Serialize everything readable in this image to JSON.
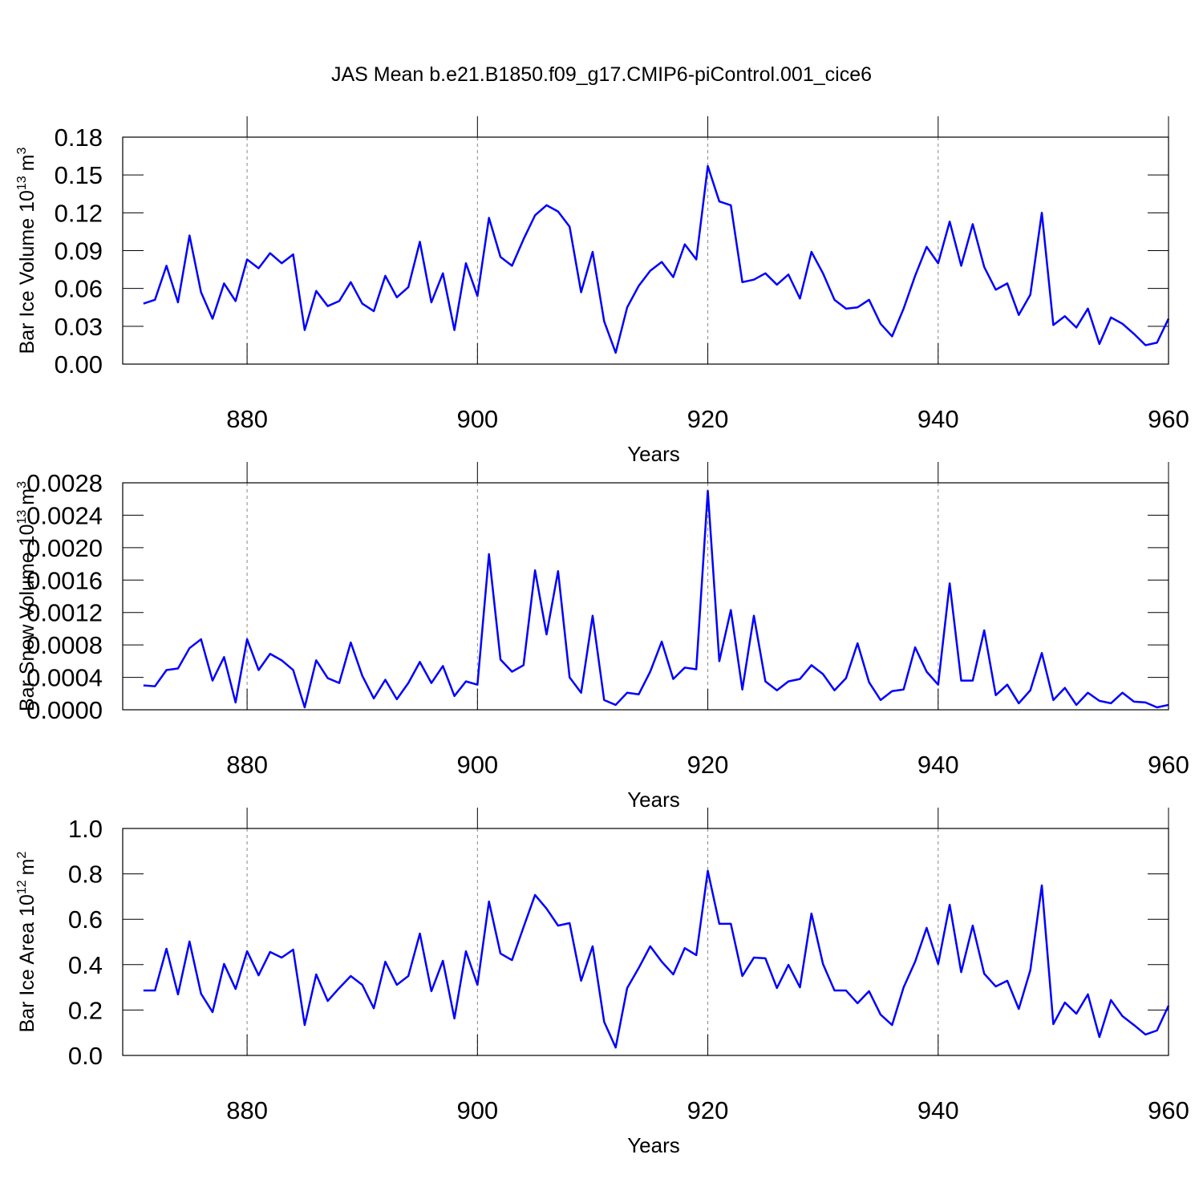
{
  "chart_data": [
    {
      "type": "line",
      "title": "JAS Mean b.e21.B1850.f09_g17.CMIP6-piControl.001_cice6",
      "ylabel": {
        "text": "Bar Ice Volume 10",
        "power": "13",
        "unit": "m",
        "unit_power": "3"
      },
      "xlabel": "Years",
      "x": [
        871,
        872,
        873,
        874,
        875,
        876,
        877,
        878,
        879,
        880,
        881,
        882,
        883,
        884,
        885,
        886,
        887,
        888,
        889,
        890,
        891,
        892,
        893,
        894,
        895,
        896,
        897,
        898,
        899,
        900,
        901,
        902,
        903,
        904,
        905,
        906,
        907,
        908,
        909,
        910,
        911,
        912,
        913,
        914,
        915,
        916,
        917,
        918,
        919,
        920,
        921,
        922,
        923,
        924,
        925,
        926,
        927,
        928,
        929,
        930,
        931,
        932,
        933,
        934,
        935,
        936,
        937,
        938,
        939,
        940,
        941,
        942,
        943,
        944,
        945,
        946,
        947,
        948,
        949,
        950,
        951,
        952,
        953,
        954,
        955,
        956,
        957,
        958,
        959,
        960
      ],
      "series": [
        {
          "color": "#0000ff",
          "values": [
            0.048,
            0.051,
            0.078,
            0.049,
            0.102,
            0.057,
            0.036,
            0.064,
            0.05,
            0.083,
            0.076,
            0.088,
            0.08,
            0.087,
            0.027,
            0.058,
            0.046,
            0.05,
            0.065,
            0.048,
            0.042,
            0.07,
            0.053,
            0.061,
            0.097,
            0.049,
            0.072,
            0.027,
            0.08,
            0.054,
            0.116,
            0.085,
            0.078,
            0.099,
            0.118,
            0.126,
            0.121,
            0.109,
            0.057,
            0.089,
            0.034,
            0.009,
            0.045,
            0.062,
            0.074,
            0.081,
            0.069,
            0.095,
            0.083,
            0.157,
            0.129,
            0.126,
            0.065,
            0.067,
            0.072,
            0.063,
            0.071,
            0.052,
            0.089,
            0.072,
            0.051,
            0.044,
            0.045,
            0.051,
            0.032,
            0.022,
            0.044,
            0.07,
            0.093,
            0.08,
            0.113,
            0.078,
            0.111,
            0.077,
            0.059,
            0.064,
            0.039,
            0.055,
            0.12,
            0.031,
            0.038,
            0.029,
            0.044,
            0.016,
            0.037,
            0.032,
            0.024,
            0.015,
            0.017,
            0.036
          ]
        }
      ],
      "xlim": [
        869.2,
        960
      ],
      "xticks": [
        880,
        900,
        920,
        940,
        960
      ],
      "ylim": [
        0,
        0.18
      ],
      "yticks": [
        {
          "value": 0,
          "label": "0.00"
        },
        {
          "value": 0.03,
          "label": "0.03"
        },
        {
          "value": 0.06,
          "label": "0.06"
        },
        {
          "value": 0.09,
          "label": "0.09"
        },
        {
          "value": 0.12,
          "label": "0.12"
        },
        {
          "value": 0.15,
          "label": "0.15"
        },
        {
          "value": 0.18,
          "label": "0.18"
        }
      ],
      "xgrid": true
    },
    {
      "type": "line",
      "ylabel": {
        "text": "Bar Snow Volume 10",
        "power": "13",
        "unit": "m",
        "unit_power": "3"
      },
      "xlabel": "Years",
      "x": [
        871,
        872,
        873,
        874,
        875,
        876,
        877,
        878,
        879,
        880,
        881,
        882,
        883,
        884,
        885,
        886,
        887,
        888,
        889,
        890,
        891,
        892,
        893,
        894,
        895,
        896,
        897,
        898,
        899,
        900,
        901,
        902,
        903,
        904,
        905,
        906,
        907,
        908,
        909,
        910,
        911,
        912,
        913,
        914,
        915,
        916,
        917,
        918,
        919,
        920,
        921,
        922,
        923,
        924,
        925,
        926,
        927,
        928,
        929,
        930,
        931,
        932,
        933,
        934,
        935,
        936,
        937,
        938,
        939,
        940,
        941,
        942,
        943,
        944,
        945,
        946,
        947,
        948,
        949,
        950,
        951,
        952,
        953,
        954,
        955,
        956,
        957,
        958,
        959,
        960
      ],
      "series": [
        {
          "color": "#0000ff",
          "values": [
            0.0003,
            0.00029,
            0.00049,
            0.00051,
            0.00076,
            0.00087,
            0.00036,
            0.00065,
            9e-05,
            0.00087,
            0.00049,
            0.00069,
            0.00061,
            0.00049,
            3e-05,
            0.00061,
            0.00039,
            0.00033,
            0.00083,
            0.00042,
            0.00014,
            0.00037,
            0.00013,
            0.00033,
            0.00059,
            0.00033,
            0.00054,
            0.00017,
            0.00035,
            0.00031,
            0.00192,
            0.00062,
            0.00047,
            0.00055,
            0.00172,
            0.00093,
            0.00171,
            0.0004,
            0.00021,
            0.00116,
            0.00012,
            6e-05,
            0.00021,
            0.00019,
            0.00047,
            0.00084,
            0.00038,
            0.00052,
            0.0005,
            0.0027,
            0.0006,
            0.00123,
            0.00025,
            0.00116,
            0.00035,
            0.00024,
            0.00035,
            0.00038,
            0.00055,
            0.00044,
            0.00024,
            0.00039,
            0.00082,
            0.00034,
            0.00012,
            0.00023,
            0.00025,
            0.00077,
            0.00047,
            0.00031,
            0.00156,
            0.00036,
            0.00036,
            0.00098,
            0.00018,
            0.00031,
            8e-05,
            0.00024,
            0.0007,
            0.00012,
            0.00027,
            6e-05,
            0.00021,
            0.00011,
            8e-05,
            0.00021,
            0.0001,
            9e-05,
            3e-05,
            6e-05
          ]
        }
      ],
      "xlim": [
        869.2,
        960
      ],
      "xticks": [
        880,
        900,
        920,
        940,
        960
      ],
      "ylim": [
        0,
        0.0028
      ],
      "yticks": [
        {
          "value": 0,
          "label": "0.0000"
        },
        {
          "value": 0.0004,
          "label": "0.0004"
        },
        {
          "value": 0.0008,
          "label": "0.0008"
        },
        {
          "value": 0.0012,
          "label": "0.0012"
        },
        {
          "value": 0.0016,
          "label": "0.0016"
        },
        {
          "value": 0.002,
          "label": "0.0020"
        },
        {
          "value": 0.0024,
          "label": "0.0024"
        },
        {
          "value": 0.0028,
          "label": "0.0028"
        }
      ],
      "xgrid": true
    },
    {
      "type": "line",
      "ylabel": {
        "text": "Bar Ice Area 10",
        "power": "12",
        "unit": "m",
        "unit_power": "2"
      },
      "xlabel": "Years",
      "x": [
        871,
        872,
        873,
        874,
        875,
        876,
        877,
        878,
        879,
        880,
        881,
        882,
        883,
        884,
        885,
        886,
        887,
        888,
        889,
        890,
        891,
        892,
        893,
        894,
        895,
        896,
        897,
        898,
        899,
        900,
        901,
        902,
        903,
        904,
        905,
        906,
        907,
        908,
        909,
        910,
        911,
        912,
        913,
        914,
        915,
        916,
        917,
        918,
        919,
        920,
        921,
        922,
        923,
        924,
        925,
        926,
        927,
        928,
        929,
        930,
        931,
        932,
        933,
        934,
        935,
        936,
        937,
        938,
        939,
        940,
        941,
        942,
        943,
        944,
        945,
        946,
        947,
        948,
        949,
        950,
        951,
        952,
        953,
        954,
        955,
        956,
        957,
        958,
        959,
        960
      ],
      "series": [
        {
          "color": "#0000ff",
          "values": [
            0.286,
            0.286,
            0.47,
            0.269,
            0.502,
            0.272,
            0.191,
            0.403,
            0.293,
            0.459,
            0.353,
            0.456,
            0.431,
            0.466,
            0.134,
            0.357,
            0.24,
            0.297,
            0.35,
            0.311,
            0.208,
            0.413,
            0.311,
            0.35,
            0.537,
            0.283,
            0.417,
            0.163,
            0.459,
            0.311,
            0.678,
            0.449,
            0.42,
            0.565,
            0.707,
            0.647,
            0.572,
            0.583,
            0.329,
            0.481,
            0.148,
            0.035,
            0.297,
            0.385,
            0.481,
            0.413,
            0.357,
            0.473,
            0.442,
            0.813,
            0.58,
            0.58,
            0.35,
            0.431,
            0.428,
            0.297,
            0.399,
            0.3,
            0.625,
            0.403,
            0.286,
            0.286,
            0.23,
            0.283,
            0.18,
            0.134,
            0.3,
            0.413,
            0.562,
            0.403,
            0.664,
            0.367,
            0.572,
            0.36,
            0.304,
            0.329,
            0.205,
            0.375,
            0.749,
            0.138,
            0.233,
            0.184,
            0.269,
            0.081,
            0.244,
            0.173,
            0.134,
            0.092,
            0.11,
            0.219
          ]
        }
      ],
      "xlim": [
        869.2,
        960
      ],
      "xticks": [
        880,
        900,
        920,
        940,
        960
      ],
      "ylim": [
        0,
        1
      ],
      "yticks": [
        {
          "value": 0,
          "label": "0.0"
        },
        {
          "value": 0.2,
          "label": "0.2"
        },
        {
          "value": 0.4,
          "label": "0.4"
        },
        {
          "value": 0.6,
          "label": "0.6"
        },
        {
          "value": 0.8,
          "label": "0.8"
        },
        {
          "value": 1,
          "label": "1.0"
        }
      ],
      "xgrid": true
    }
  ]
}
